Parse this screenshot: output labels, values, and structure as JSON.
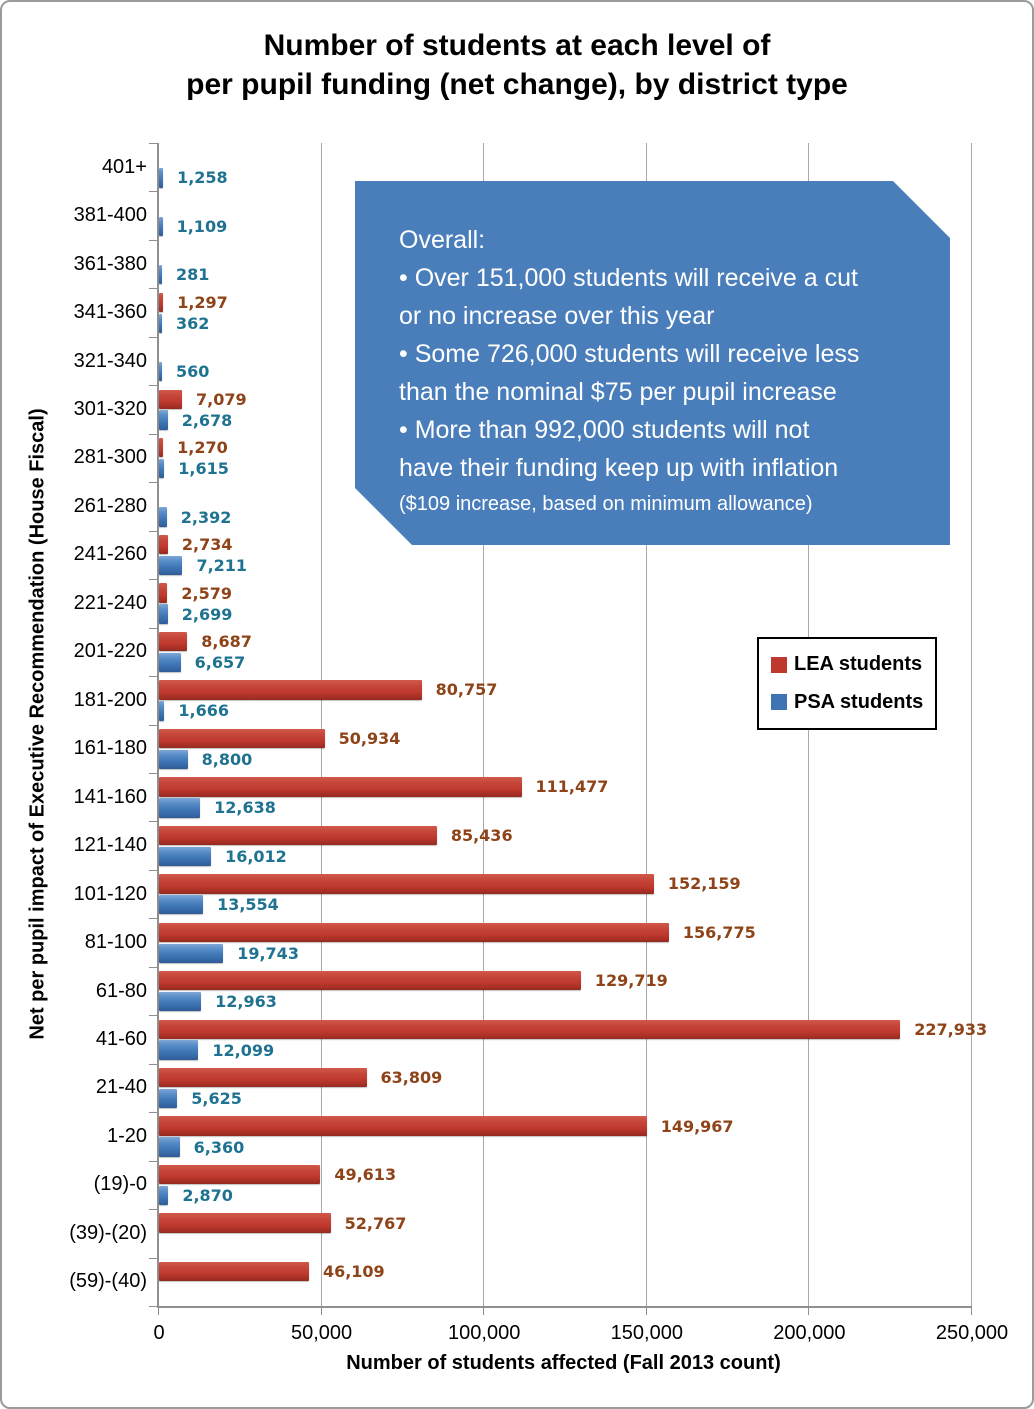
{
  "title": "Number of students at each level of\nper pupil funding (net change), by district type",
  "chart_data": {
    "type": "bar",
    "orientation": "horizontal",
    "title": "Number of students at each level of per pupil funding (net change), by district type",
    "xlabel": "Number of students affected (Fall 2013 count)",
    "ylabel": "Net per pupil impact of Executive Recommendation (House Fiscal)",
    "xlim": [
      0,
      250000
    ],
    "xticks": [
      "0",
      "50,000",
      "100,000",
      "150,000",
      "200,000",
      "250,000"
    ],
    "grid": "vertical",
    "legend_position": "middle-right",
    "categories": [
      "401+",
      "381-400",
      "361-380",
      "341-360",
      "321-340",
      "301-320",
      "281-300",
      "261-280",
      "241-260",
      "221-240",
      "201-220",
      "181-200",
      "161-180",
      "141-160",
      "121-140",
      "101-120",
      "81-100",
      "61-80",
      "41-60",
      "21-40",
      "1-20",
      "(19)-0",
      "(39)-(20)",
      "(59)-(40)"
    ],
    "series": [
      {
        "name": "LEA students",
        "color": "#bf382d",
        "label_color": "#8e4318",
        "values": [
          null,
          null,
          null,
          1297,
          null,
          7079,
          1270,
          null,
          2734,
          2579,
          8687,
          80757,
          50934,
          111477,
          85436,
          152159,
          156775,
          129719,
          227933,
          63809,
          149967,
          49613,
          52767,
          46109
        ]
      },
      {
        "name": "PSA students",
        "color": "#3e74b4",
        "label_color": "#1f7391",
        "values": [
          1258,
          1109,
          281,
          362,
          560,
          2678,
          1615,
          2392,
          7211,
          2699,
          6657,
          1666,
          8800,
          12638,
          16012,
          13554,
          19743,
          12963,
          12099,
          5625,
          6360,
          2870,
          null,
          null
        ]
      }
    ]
  },
  "annotation": {
    "heading": "Overall:",
    "bullets": [
      "• Over 151,000 students will receive a cut\nor no increase over this year",
      "• Some 726,000 students will receive less\nthan the nominal $75 per pupil increase",
      "• More than 992,000 students will not\nhave their funding keep up with inflation"
    ],
    "footnote": "($109 increase, based on minimum allowance)",
    "box_color": "#4a7ebb"
  }
}
